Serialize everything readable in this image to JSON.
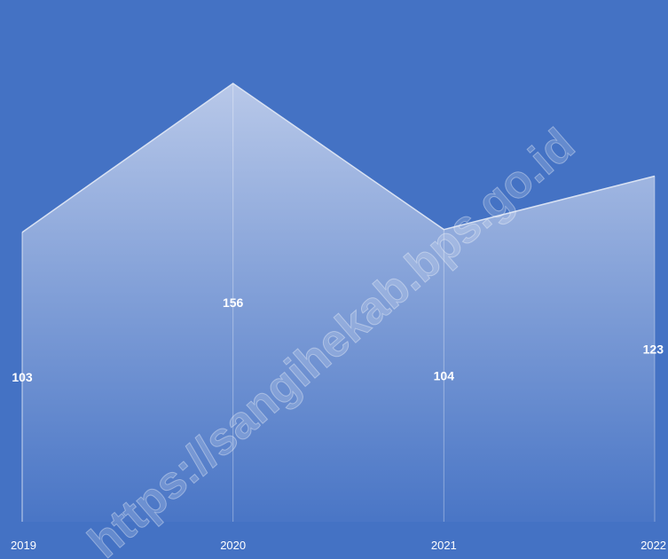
{
  "chart_data": {
    "type": "area",
    "x": [
      "2019",
      "2020",
      "2021",
      "2022"
    ],
    "values": [
      103,
      156,
      104,
      123
    ],
    "ylim": [
      0,
      200
    ],
    "grid": false,
    "legend": "none"
  },
  "colors": {
    "background": "#4472c4",
    "area_top": "#bccbea",
    "area_bottom": "#4a76c6",
    "line": "#d9e2f3"
  },
  "watermark": "https://sangihekab.bps.go.id"
}
